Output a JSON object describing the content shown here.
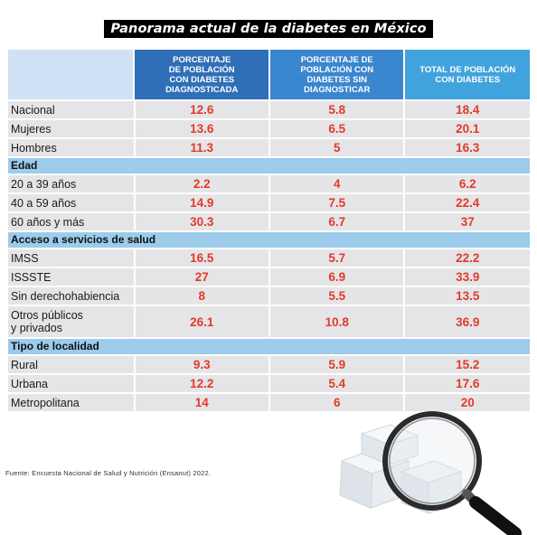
{
  "title": "Panorama actual de la diabetes en México",
  "source": "Fuente: Encuesta Nacional de Salud y Nutrición (Ensanut) 2022.",
  "colors": {
    "header_col1": "#2f6fb7",
    "header_col2": "#3a86cf",
    "header_col3": "#41a3dd",
    "header_label_cell": "#cfe2f5",
    "section_bar": "#9ccbec",
    "row_background": "#e5e5e7",
    "value_text": "#e23a2a"
  },
  "icons": [
    "sugar-cubes-icon",
    "magnifying-glass-icon"
  ],
  "chart_data": {
    "type": "table",
    "title": "Panorama actual de la diabetes en México",
    "columns": [
      "PORCENTAJE\nDE POBLACIÓN\nCON DIABETES\nDIAGNOSTICADA",
      "PORCENTAJE DE\nPOBLACIÓN CON\nDIABETES SIN\nDIAGNOSTICAR",
      "TOTAL DE POBLACIÓN\nCON DIABETES"
    ],
    "groups": [
      {
        "name": "",
        "rows": [
          {
            "label": "Nacional",
            "values": [
              "12.6",
              "5.8",
              "18.4"
            ]
          },
          {
            "label": "Mujeres",
            "values": [
              "13.6",
              "6.5",
              "20.1"
            ]
          },
          {
            "label": "Hombres",
            "values": [
              "11.3",
              "5",
              "16.3"
            ]
          }
        ]
      },
      {
        "name": "Edad",
        "rows": [
          {
            "label": "20 a 39 años",
            "values": [
              "2.2",
              "4",
              "6.2"
            ]
          },
          {
            "label": "40 a 59 años",
            "values": [
              "14.9",
              "7.5",
              "22.4"
            ]
          },
          {
            "label": "60 años y más",
            "values": [
              "30.3",
              "6.7",
              "37"
            ]
          }
        ]
      },
      {
        "name": "Acceso a servicios de salud",
        "rows": [
          {
            "label": "IMSS",
            "values": [
              "16.5",
              "5.7",
              "22.2"
            ]
          },
          {
            "label": "ISSSTE",
            "values": [
              "27",
              "6.9",
              "33.9"
            ]
          },
          {
            "label": "Sin derechohabiencia",
            "values": [
              "8",
              "5.5",
              "13.5"
            ]
          },
          {
            "label": "Otros públicos\ny privados",
            "values": [
              "26.1",
              "10.8",
              "36.9"
            ]
          }
        ]
      },
      {
        "name": "Tipo de localidad",
        "rows": [
          {
            "label": "Rural",
            "values": [
              "9.3",
              "5.9",
              "15.2"
            ]
          },
          {
            "label": "Urbana",
            "values": [
              "12.2",
              "5.4",
              "17.6"
            ]
          },
          {
            "label": "Metropolitana",
            "values": [
              "14",
              "6",
              "20"
            ]
          }
        ]
      }
    ]
  }
}
